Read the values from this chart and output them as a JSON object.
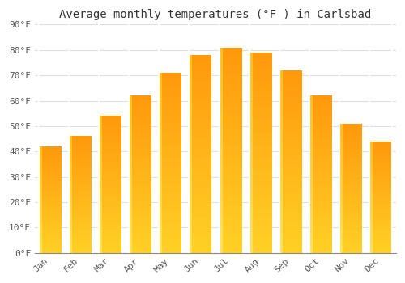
{
  "title": "Average monthly temperatures (°F ) in Carlsbad",
  "months": [
    "Jan",
    "Feb",
    "Mar",
    "Apr",
    "May",
    "Jun",
    "Jul",
    "Aug",
    "Sep",
    "Oct",
    "Nov",
    "Dec"
  ],
  "values": [
    42,
    46,
    54,
    62,
    71,
    78,
    81,
    79,
    72,
    62,
    51,
    44
  ],
  "bar_color_bottom": "#FFC020",
  "bar_color_top": "#FFA020",
  "bar_color_left_highlight": "#FFD060",
  "ylim": [
    0,
    90
  ],
  "yticks": [
    0,
    10,
    20,
    30,
    40,
    50,
    60,
    70,
    80,
    90
  ],
  "ytick_labels": [
    "0°F",
    "10°F",
    "20°F",
    "30°F",
    "40°F",
    "50°F",
    "60°F",
    "70°F",
    "80°F",
    "90°F"
  ],
  "background_color": "#ffffff",
  "grid_color": "#e0e0e0",
  "title_fontsize": 10,
  "tick_fontsize": 8,
  "font_family": "monospace"
}
